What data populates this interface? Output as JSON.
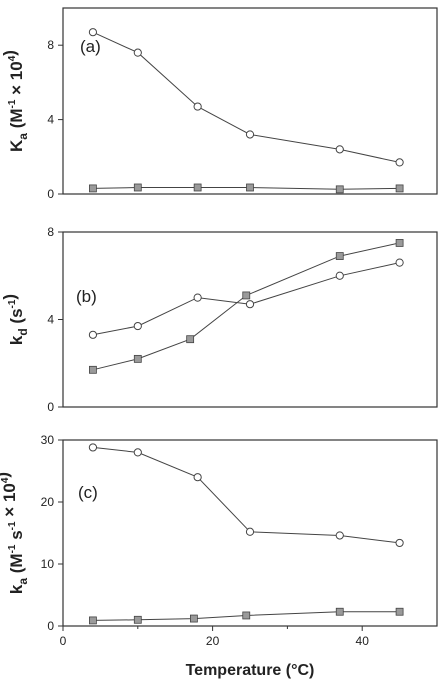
{
  "figure": {
    "xlabel": "Temperature (°C)"
  },
  "chart_data": [
    {
      "type": "line",
      "panel_label": "(a)",
      "ylabel": {
        "base": "K",
        "sub": "a",
        "unit_pre": " (M",
        "unit_sup": "-1",
        "unit_mid": " × 10",
        "unit_sup2": "4",
        "unit_post": ")"
      },
      "xlim": [
        0,
        50
      ],
      "ylim": [
        0,
        10
      ],
      "yticks": [
        0,
        4,
        8
      ],
      "xticks": [],
      "series": [
        {
          "marker": "circle",
          "x": [
            4,
            10,
            18,
            25,
            37,
            45
          ],
          "y": [
            8.7,
            7.6,
            4.7,
            3.2,
            2.4,
            1.7
          ]
        },
        {
          "marker": "square",
          "x": [
            4,
            10,
            18,
            25,
            37,
            45
          ],
          "y": [
            0.3,
            0.35,
            0.35,
            0.35,
            0.25,
            0.3
          ]
        }
      ]
    },
    {
      "type": "line",
      "panel_label": "(b)",
      "ylabel": {
        "base": "k",
        "sub": "d",
        "unit_pre": " (s",
        "unit_sup": "-1",
        "unit_mid": "",
        "unit_sup2": "",
        "unit_post": ")"
      },
      "xlim": [
        0,
        50
      ],
      "ylim": [
        0,
        8
      ],
      "yticks": [
        0,
        4,
        8
      ],
      "xticks": [],
      "series": [
        {
          "marker": "circle",
          "x": [
            4,
            10,
            18,
            25,
            37,
            45
          ],
          "y": [
            3.3,
            3.7,
            5.0,
            4.7,
            6.0,
            6.6
          ]
        },
        {
          "marker": "square",
          "x": [
            4,
            10,
            17,
            24.5,
            37,
            45
          ],
          "y": [
            1.7,
            2.2,
            3.1,
            5.1,
            6.9,
            7.5
          ]
        }
      ]
    },
    {
      "type": "line",
      "panel_label": "(c)",
      "ylabel": {
        "base": "k",
        "sub": "a",
        "unit_pre": " (M",
        "unit_sup": "-1",
        "unit_mid": " s",
        "unit_sup2": "-1",
        "unit_post": " × 10",
        "unit_sup3": "4",
        "unit_post2": ")"
      },
      "xlim": [
        0,
        50
      ],
      "ylim": [
        0,
        30
      ],
      "yticks": [
        0,
        10,
        20,
        30
      ],
      "xticks": [
        0,
        20,
        40
      ],
      "series": [
        {
          "marker": "circle",
          "x": [
            4,
            10,
            18,
            25,
            37,
            45
          ],
          "y": [
            28.8,
            28.0,
            24.0,
            15.2,
            14.6,
            13.4
          ]
        },
        {
          "marker": "square",
          "x": [
            4,
            10,
            17.5,
            24.5,
            37,
            45
          ],
          "y": [
            0.9,
            1.0,
            1.2,
            1.7,
            2.3,
            2.3
          ]
        }
      ]
    }
  ]
}
